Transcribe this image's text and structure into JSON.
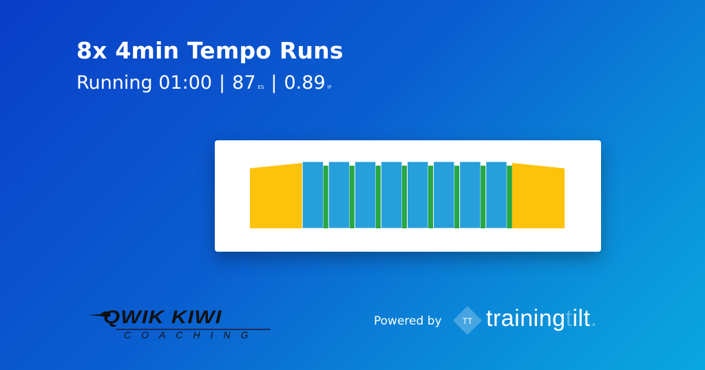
{
  "workout": {
    "title": "8x 4min Tempo Runs",
    "sport": "Running",
    "duration": "01:00",
    "stress_score": "87",
    "stress_label": "ES",
    "intensity_factor": "0.89",
    "intensity_label": "IF",
    "separator": "|"
  },
  "chart_data": {
    "type": "bar",
    "xlabel": "",
    "ylabel": "",
    "grid": false,
    "colors": {
      "warmup": "#fdc20a",
      "interval": "#279fda",
      "recovery": "#27a744"
    },
    "segments": [
      {
        "kind": "warmup",
        "minutes": 10,
        "intensity_start": 0.9,
        "intensity_end": 0.98
      },
      {
        "kind": "interval",
        "minutes": 4,
        "intensity": 1.0
      },
      {
        "kind": "recovery",
        "minutes": 1,
        "intensity": 0.94
      },
      {
        "kind": "interval",
        "minutes": 4,
        "intensity": 1.0
      },
      {
        "kind": "recovery",
        "minutes": 1,
        "intensity": 0.94
      },
      {
        "kind": "interval",
        "minutes": 4,
        "intensity": 1.0
      },
      {
        "kind": "recovery",
        "minutes": 1,
        "intensity": 0.94
      },
      {
        "kind": "interval",
        "minutes": 4,
        "intensity": 1.0
      },
      {
        "kind": "recovery",
        "minutes": 1,
        "intensity": 0.94
      },
      {
        "kind": "interval",
        "minutes": 4,
        "intensity": 1.0
      },
      {
        "kind": "recovery",
        "minutes": 1,
        "intensity": 0.94
      },
      {
        "kind": "interval",
        "minutes": 4,
        "intensity": 1.0
      },
      {
        "kind": "recovery",
        "minutes": 1,
        "intensity": 0.94
      },
      {
        "kind": "interval",
        "minutes": 4,
        "intensity": 1.0
      },
      {
        "kind": "recovery",
        "minutes": 1,
        "intensity": 0.94
      },
      {
        "kind": "interval",
        "minutes": 4,
        "intensity": 1.0
      },
      {
        "kind": "recovery",
        "minutes": 1,
        "intensity": 0.94
      },
      {
        "kind": "cooldown",
        "minutes": 10,
        "intensity_start": 0.98,
        "intensity_end": 0.9
      }
    ]
  },
  "branding": {
    "coach_logo_main": "QWIK KIWI",
    "coach_logo_sub": "COACHING",
    "powered_by": "Powered by",
    "tt_mark": "TT",
    "product_name_a": "training",
    "product_name_b": "t",
    "product_name_c": "ilt",
    "product_name_dot": "."
  }
}
